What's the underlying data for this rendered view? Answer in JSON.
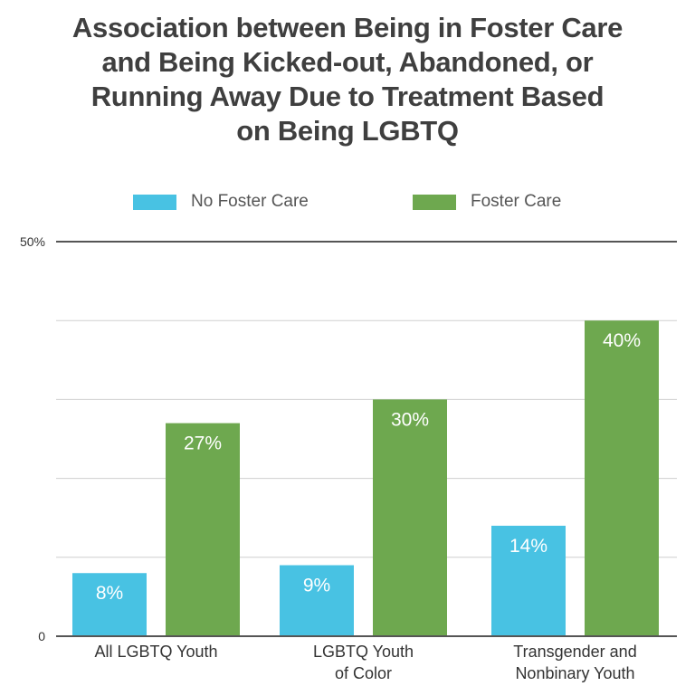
{
  "chart_data": {
    "type": "bar",
    "title": "Association between Being in Foster Care and Being Kicked-out, Abandoned, or Running Away Due to Treatment Based on Being LGBTQ",
    "title_lines": [
      "Association between Being in Foster Care",
      "and Being Kicked-out, Abandoned, or",
      "Running Away Due to Treatment Based",
      "on Being LGBTQ"
    ],
    "categories": [
      [
        "All LGBTQ Youth"
      ],
      [
        "LGBTQ Youth",
        "of Color"
      ],
      [
        "Transgender and",
        "Nonbinary Youth"
      ]
    ],
    "series": [
      {
        "name": "No Foster Care",
        "values": [
          8,
          9,
          14
        ],
        "labels": [
          "8%",
          "9%",
          "14%"
        ],
        "color": "#48c2e3"
      },
      {
        "name": "Foster Care",
        "values": [
          27,
          30,
          40
        ],
        "labels": [
          "27%",
          "30%",
          "40%"
        ],
        "color": "#6ea84f"
      }
    ],
    "ylim": [
      0,
      50
    ],
    "yticks": [
      {
        "value": 0,
        "label": "0"
      },
      {
        "value": 50,
        "label": "50%"
      }
    ],
    "gridlines": [
      10,
      20,
      30,
      40
    ],
    "grid": true,
    "legend": "top-center"
  }
}
